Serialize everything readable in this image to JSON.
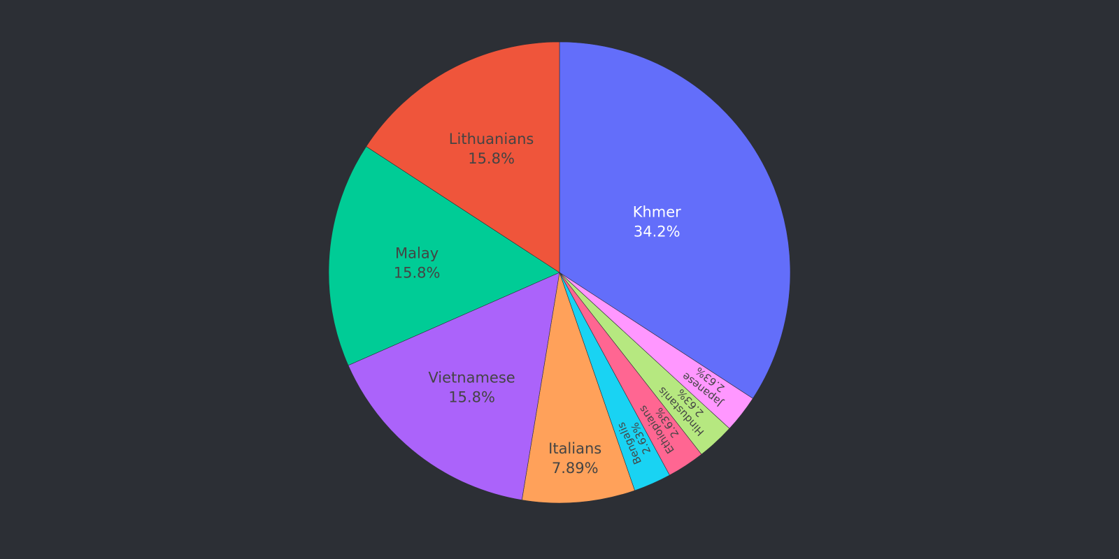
{
  "background": "#2c2f35",
  "chart_data": {
    "type": "pie",
    "start_angle_deg": 90,
    "direction": "clockwise",
    "slices": [
      {
        "label": "Khmer",
        "value": 34.2,
        "percent_label": "34.2%",
        "color": "#636efa",
        "text_color": "#ffffff",
        "text_mode": "horizontal"
      },
      {
        "label": "Japanese",
        "value": 2.63,
        "percent_label": "2.63%",
        "color": "#ff97ff",
        "text_color": "#444444",
        "text_mode": "radial"
      },
      {
        "label": "Hindustanis",
        "value": 2.63,
        "percent_label": "2.63%",
        "color": "#b6e880",
        "text_color": "#444444",
        "text_mode": "radial"
      },
      {
        "label": "Ethiopians",
        "value": 2.63,
        "percent_label": "2.63%",
        "color": "#ff6692",
        "text_color": "#444444",
        "text_mode": "radial"
      },
      {
        "label": "Bengalis",
        "value": 2.63,
        "percent_label": "2.63%",
        "color": "#19d3f3",
        "text_color": "#444444",
        "text_mode": "radial"
      },
      {
        "label": "Italians",
        "value": 7.89,
        "percent_label": "7.89%",
        "color": "#ffa15a",
        "text_color": "#444444",
        "text_mode": "horizontal"
      },
      {
        "label": "Vietnamese",
        "value": 15.8,
        "percent_label": "15.8%",
        "color": "#ab63fa",
        "text_color": "#444444",
        "text_mode": "horizontal"
      },
      {
        "label": "Malay",
        "value": 15.8,
        "percent_label": "15.8%",
        "color": "#00cc96",
        "text_color": "#444444",
        "text_mode": "horizontal"
      },
      {
        "label": "Lithuanians",
        "value": 15.8,
        "percent_label": "15.8%",
        "color": "#ef553b",
        "text_color": "#444444",
        "text_mode": "horizontal"
      }
    ]
  }
}
